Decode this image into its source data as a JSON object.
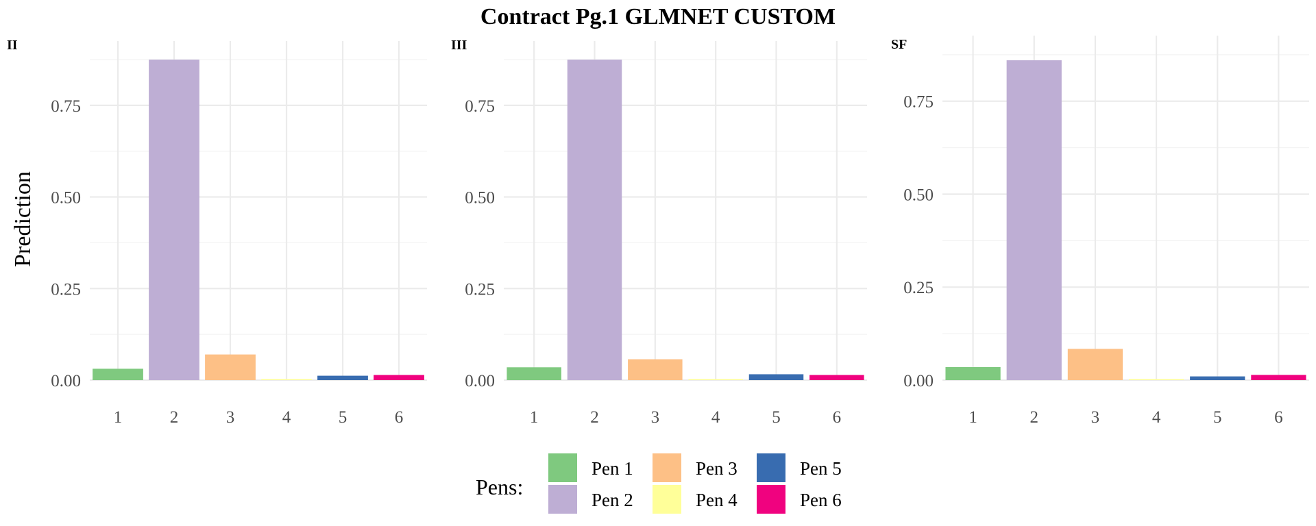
{
  "chart_data": {
    "type": "bar",
    "title": "Contract Pg.1 GLMNET CUSTOM",
    "ylabel": "Prediction",
    "xlabel": "",
    "categories": [
      "1",
      "2",
      "3",
      "4",
      "5",
      "6"
    ],
    "yticks": [
      "0.00",
      "0.25",
      "0.50",
      "0.75"
    ],
    "legend": {
      "title": "Pens:",
      "position": "bottom",
      "items": [
        {
          "label": "Pen 1",
          "color": "#7fc97f"
        },
        {
          "label": "Pen 2",
          "color": "#beaed4"
        },
        {
          "label": "Pen 3",
          "color": "#fdc086"
        },
        {
          "label": "Pen 4",
          "color": "#ffff99"
        },
        {
          "label": "Pen 5",
          "color": "#386cb0"
        },
        {
          "label": "Pen 6",
          "color": "#f0027f"
        }
      ]
    },
    "panels": [
      {
        "title": "II",
        "ylim": [
          0,
          0.875
        ],
        "values": [
          0.031,
          0.875,
          0.07,
          0.002,
          0.012,
          0.014
        ]
      },
      {
        "title": "III",
        "ylim": [
          0,
          0.875
        ],
        "values": [
          0.035,
          0.875,
          0.057,
          0.002,
          0.016,
          0.014
        ]
      },
      {
        "title": "SF",
        "ylim": [
          0,
          0.86
        ],
        "values": [
          0.035,
          0.86,
          0.084,
          0.002,
          0.01,
          0.014
        ]
      }
    ]
  }
}
